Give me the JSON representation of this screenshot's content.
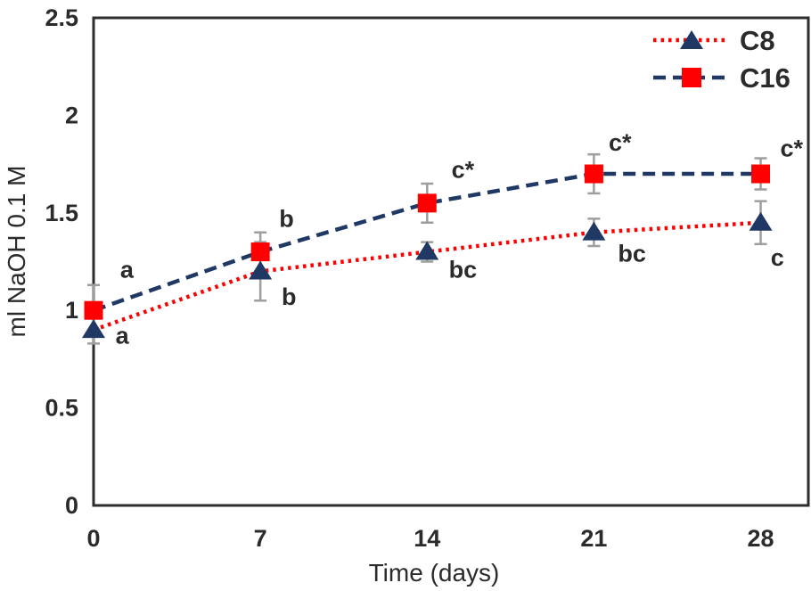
{
  "chart_data": {
    "type": "line",
    "title": "",
    "xlabel": "Time (days)",
    "ylabel": "ml NaOH 0.1 M",
    "x": [
      0,
      7,
      14,
      21,
      28
    ],
    "yticks": [
      0,
      0.5,
      1,
      1.5,
      2,
      2.5
    ],
    "ylim": [
      0,
      2.5
    ],
    "xlim": [
      0,
      30
    ],
    "grid": false,
    "legend_position": "top-right-inside",
    "series": [
      {
        "name": "C8",
        "marker": "triangle",
        "marker_color": "#1F3864",
        "line_color": "#FE0000",
        "line_style": "dotted",
        "values": [
          0.9,
          1.2,
          1.3,
          1.4,
          1.45
        ],
        "errors": [
          0.07,
          0.15,
          0.05,
          0.07,
          0.11
        ]
      },
      {
        "name": "C16",
        "marker": "square",
        "marker_color": "#FE0000",
        "line_color": "#1F3864",
        "line_style": "dashed",
        "values": [
          1.0,
          1.3,
          1.55,
          1.7,
          1.7
        ],
        "errors": [
          0.13,
          0.1,
          0.1,
          0.1,
          0.08
        ]
      }
    ],
    "annotations": [
      {
        "text": "a",
        "day": 1.4,
        "value": 1.21
      },
      {
        "text": "a",
        "day": 1.2,
        "value": 0.87
      },
      {
        "text": "b",
        "day": 8.1,
        "value": 1.47
      },
      {
        "text": "b",
        "day": 8.2,
        "value": 1.07
      },
      {
        "text": "c*",
        "day": 15.5,
        "value": 1.72
      },
      {
        "text": "bc",
        "day": 15.5,
        "value": 1.21
      },
      {
        "text": "c*",
        "day": 22.1,
        "value": 1.86
      },
      {
        "text": "bc",
        "day": 22.6,
        "value": 1.29
      },
      {
        "text": "c*",
        "day": 29.3,
        "value": 1.83
      },
      {
        "text": "c",
        "day": 28.7,
        "value": 1.27
      }
    ],
    "error_bar_color": "#9E9E9E",
    "frame_color": "#2E2E2E",
    "text_color": "#2B2B2B"
  }
}
